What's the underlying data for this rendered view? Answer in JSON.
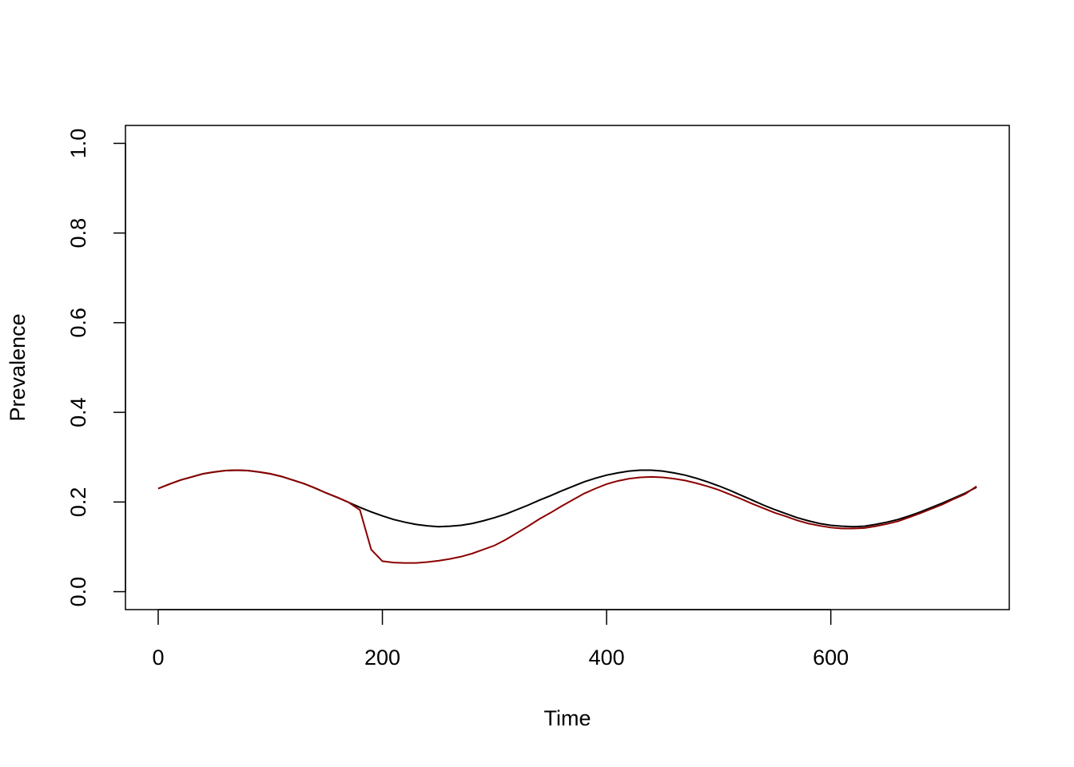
{
  "chart_data": {
    "type": "line",
    "x_label": "Time",
    "y_label": "Prevalence",
    "x": [
      0,
      10,
      20,
      30,
      40,
      50,
      60,
      70,
      80,
      90,
      100,
      110,
      120,
      130,
      140,
      150,
      160,
      170,
      180,
      190,
      200,
      210,
      220,
      230,
      240,
      250,
      260,
      270,
      280,
      290,
      300,
      310,
      320,
      330,
      340,
      350,
      360,
      370,
      380,
      390,
      400,
      410,
      420,
      430,
      440,
      450,
      460,
      470,
      480,
      490,
      500,
      510,
      520,
      530,
      540,
      550,
      560,
      570,
      580,
      590,
      600,
      610,
      620,
      630,
      640,
      650,
      660,
      670,
      680,
      690,
      700,
      710,
      720,
      730
    ],
    "series": [
      {
        "color": "#000000",
        "values": [
          0.23,
          0.24,
          0.249,
          0.256,
          0.263,
          0.267,
          0.27,
          0.271,
          0.27,
          0.267,
          0.263,
          0.257,
          0.249,
          0.241,
          0.231,
          0.22,
          0.21,
          0.199,
          0.188,
          0.178,
          0.169,
          0.161,
          0.155,
          0.15,
          0.147,
          0.145,
          0.146,
          0.148,
          0.152,
          0.158,
          0.165,
          0.173,
          0.183,
          0.193,
          0.204,
          0.214,
          0.225,
          0.235,
          0.245,
          0.253,
          0.26,
          0.265,
          0.269,
          0.271,
          0.271,
          0.269,
          0.265,
          0.26,
          0.253,
          0.245,
          0.236,
          0.226,
          0.215,
          0.204,
          0.193,
          0.183,
          0.174,
          0.165,
          0.158,
          0.152,
          0.148,
          0.146,
          0.145,
          0.146,
          0.15,
          0.155,
          0.161,
          0.169,
          0.178,
          0.188,
          0.198,
          0.209,
          0.22,
          0.233
        ]
      },
      {
        "color": "#8b0000",
        "values": [
          0.23,
          0.24,
          0.249,
          0.256,
          0.263,
          0.267,
          0.27,
          0.271,
          0.27,
          0.267,
          0.263,
          0.257,
          0.249,
          0.241,
          0.231,
          0.22,
          0.21,
          0.199,
          0.182,
          0.094,
          0.068,
          0.065,
          0.064,
          0.064,
          0.066,
          0.069,
          0.073,
          0.078,
          0.085,
          0.094,
          0.103,
          0.116,
          0.131,
          0.146,
          0.162,
          0.176,
          0.191,
          0.205,
          0.219,
          0.23,
          0.24,
          0.247,
          0.252,
          0.255,
          0.256,
          0.255,
          0.252,
          0.248,
          0.242,
          0.235,
          0.227,
          0.217,
          0.207,
          0.196,
          0.186,
          0.176,
          0.168,
          0.159,
          0.152,
          0.147,
          0.143,
          0.141,
          0.141,
          0.142,
          0.146,
          0.151,
          0.157,
          0.166,
          0.175,
          0.185,
          0.195,
          0.207,
          0.218,
          0.235
        ]
      }
    ],
    "xlim": [
      -29.2,
      759.2
    ],
    "ylim": [
      -0.04,
      1.04
    ],
    "xticks": [
      0,
      200,
      400,
      600
    ],
    "yticks": [
      {
        "value": 0,
        "label": "0.0"
      },
      {
        "value": 0.2,
        "label": "0.2"
      },
      {
        "value": 0.4,
        "label": "0.4"
      },
      {
        "value": 0.6,
        "label": "0.6"
      },
      {
        "value": 0.8,
        "label": "0.8"
      },
      {
        "value": 1,
        "label": "1.0"
      }
    ]
  }
}
